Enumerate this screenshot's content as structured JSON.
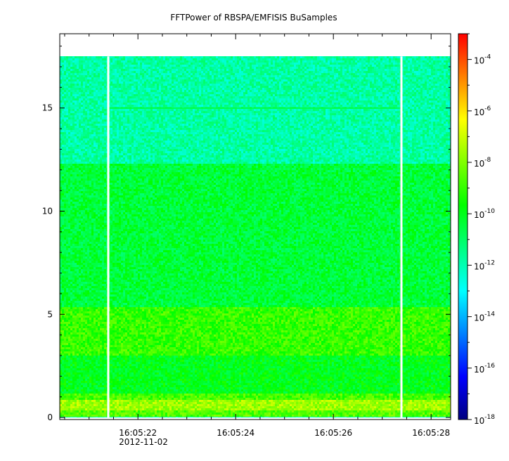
{
  "chart_data": {
    "type": "heatmap",
    "title": "FFTPower of RBSPA/EMFISIS  BuSamples",
    "x": {
      "label": "",
      "range": [
        "16:05:20.400",
        "16:05:28.400"
      ],
      "ticks": [
        "16:05:22",
        "16:05:24",
        "16:05:26",
        "16:05:28"
      ],
      "date_label": "2012-11-02",
      "minor_step_seconds": 0.5
    },
    "y": {
      "label": "",
      "range": [
        -0.1,
        18.6
      ],
      "ticks": [
        0,
        5,
        10,
        15
      ],
      "minor_step": 1
    },
    "z": {
      "label": "",
      "scale": "log",
      "range": [
        1e-18,
        0.001
      ],
      "ticks": [
        {
          "mantissa": "10",
          "exponent": "-4"
        },
        {
          "mantissa": "10",
          "exponent": "-6"
        },
        {
          "mantissa": "10",
          "exponent": "-8"
        },
        {
          "mantissa": "10",
          "exponent": "-10"
        },
        {
          "mantissa": "10",
          "exponent": "-12"
        },
        {
          "mantissa": "10",
          "exponent": "-14"
        },
        {
          "mantissa": "10",
          "exponent": "-16"
        },
        {
          "mantissa": "10",
          "exponent": "-18"
        }
      ],
      "tick_exponents": [
        -4,
        -6,
        -8,
        -10,
        -12,
        -14,
        -16,
        -18
      ],
      "colormap": [
        "#000080",
        "#0000ff",
        "#0080ff",
        "#00ffff",
        "#00ff80",
        "#00ff00",
        "#80ff00",
        "#ffff00",
        "#ff8000",
        "#ff0000"
      ]
    },
    "data_extent": {
      "y_max": 17.5,
      "y_min": 0.0
    },
    "gaps_at_seconds": [
      "16:05:21.400",
      "16:05:27.400"
    ],
    "bands": [
      {
        "y_from": 0.0,
        "y_to": 0.35,
        "log_power": -8.6
      },
      {
        "y_from": 0.35,
        "y_to": 0.9,
        "log_power": -7.6
      },
      {
        "y_from": 0.9,
        "y_to": 1.2,
        "log_power": -8.8
      },
      {
        "y_from": 1.2,
        "y_to": 3.0,
        "log_power": -10.0
      },
      {
        "y_from": 3.0,
        "y_to": 5.3,
        "log_power": -9.0
      },
      {
        "y_from": 5.3,
        "y_to": 12.3,
        "log_power": -10.4
      },
      {
        "y_from": 12.3,
        "y_to": 17.5,
        "log_power": -11.8
      }
    ],
    "line_feature": {
      "y": 15.0,
      "from": "16:05:21.400",
      "to": "16:05:27.400",
      "log_power": -10.5
    }
  }
}
